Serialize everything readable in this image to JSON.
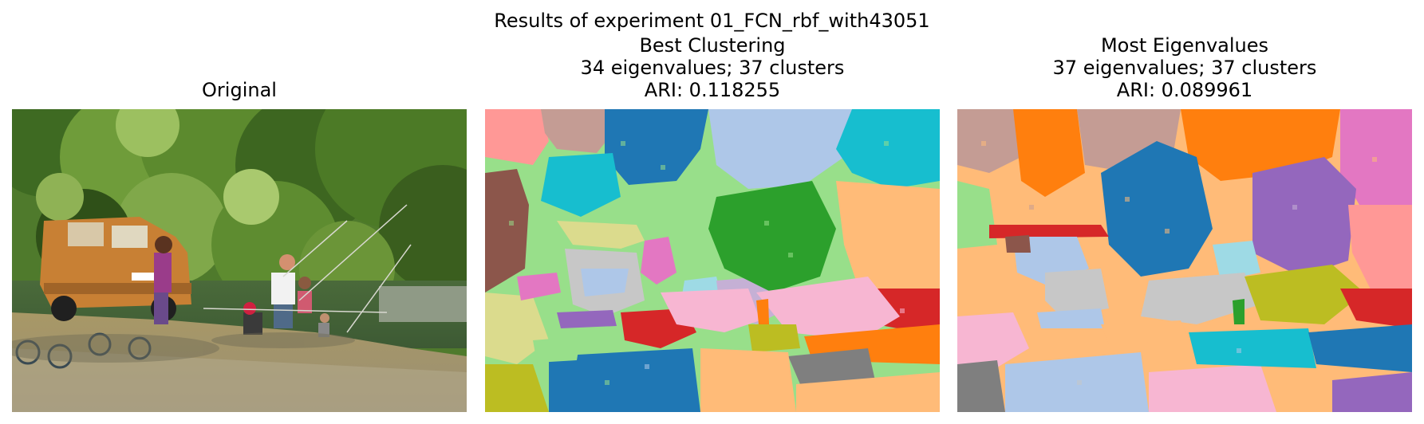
{
  "figure": {
    "suptitle": "Results of experiment 01_FCN_rbf_with43051"
  },
  "panels": [
    {
      "title_lines": [
        "Original"
      ]
    },
    {
      "title_lines": [
        "Best Clustering",
        "34 eigenvalues; 37 clusters",
        "ARI: 0.118255"
      ]
    },
    {
      "title_lines": [
        "Most Eigenvalues",
        "37 eigenvalues; 37 clusters",
        "ARI: 0.089961"
      ]
    }
  ],
  "palette": {
    "blue": "#1f77b4",
    "light_blue": "#aec7e8",
    "orange": "#ff7f0e",
    "light_orange": "#ffbb78",
    "green": "#2ca02c",
    "light_green": "#98df8a",
    "red": "#d62728",
    "salmon": "#ff9896",
    "purple": "#9467bd",
    "lavender": "#c5b0d5",
    "brown": "#8c564b",
    "rosy_brown": "#c49c94",
    "pink": "#e377c2",
    "light_pink": "#f7b6d2",
    "gray": "#7f7f7f",
    "light_gray": "#c7c7c7",
    "olive": "#bcbd22",
    "khaki": "#dbdb8d",
    "cyan": "#17becf",
    "light_cyan": "#9edae5"
  }
}
